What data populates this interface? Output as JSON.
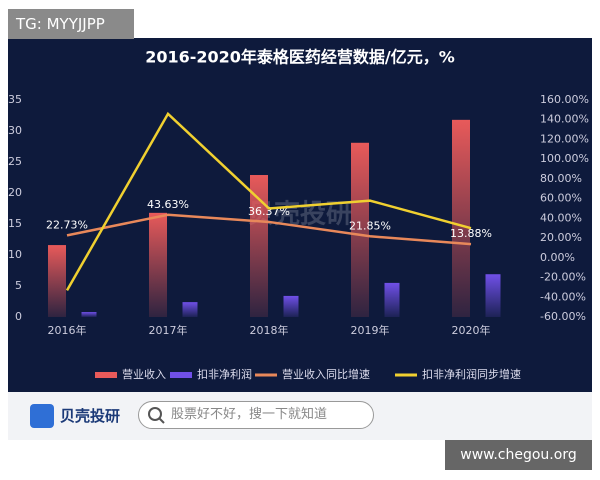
{
  "overlay": {
    "tag": "TG: MYYJJPP",
    "watermark": "贝壳投研",
    "brand": "贝壳投研",
    "search_placeholder": "股票好不好，搜一下就知道",
    "site": "www.chegou.org"
  },
  "chart_data": {
    "type": "combo",
    "title": "2016-2020年泰格医药经营数据/亿元，%",
    "categories": [
      "2016年",
      "2017年",
      "2018年",
      "2019年",
      "2020年"
    ],
    "ylim": [
      0,
      35
    ],
    "yticks": [
      0,
      5,
      10,
      15,
      20,
      25,
      30,
      35
    ],
    "y2lim": [
      -60,
      160
    ],
    "y2ticks": [
      {
        "value": -60,
        "label": "-60.00%"
      },
      {
        "value": -40,
        "label": "-40.00%"
      },
      {
        "value": -20,
        "label": "-20.00%"
      },
      {
        "value": 0,
        "label": "0.00%"
      },
      {
        "value": 20,
        "label": "20.00%"
      },
      {
        "value": 40,
        "label": "40.00%"
      },
      {
        "value": 60,
        "label": "60.00%"
      },
      {
        "value": 80,
        "label": "80.00%"
      },
      {
        "value": 100,
        "label": "100.00%"
      },
      {
        "value": 120,
        "label": "120.00%"
      },
      {
        "value": 140,
        "label": "140.00%"
      },
      {
        "value": 160,
        "label": "160.00%"
      }
    ],
    "series": [
      {
        "name": "营业收入",
        "type": "bar",
        "color": "#e85a5a",
        "values": [
          11.6,
          16.8,
          22.9,
          28.1,
          31.8
        ]
      },
      {
        "name": "扣非净利润",
        "type": "bar",
        "color": "#7050e8",
        "values": [
          0.8,
          2.4,
          3.4,
          5.5,
          6.9
        ]
      },
      {
        "name": "营业收入同比增速",
        "type": "line",
        "axis": "y2",
        "color": "#e8885a",
        "values": [
          22.73,
          43.63,
          36.37,
          21.85,
          13.88
        ],
        "value_labels": [
          "22.73%",
          "43.63%",
          "36.37%",
          "21.85%",
          "13.88%"
        ]
      },
      {
        "name": "扣非净利润同步增速",
        "type": "line",
        "axis": "y2",
        "color": "#f0d030",
        "values": [
          -33,
          146,
          50,
          58,
          30
        ]
      }
    ]
  }
}
